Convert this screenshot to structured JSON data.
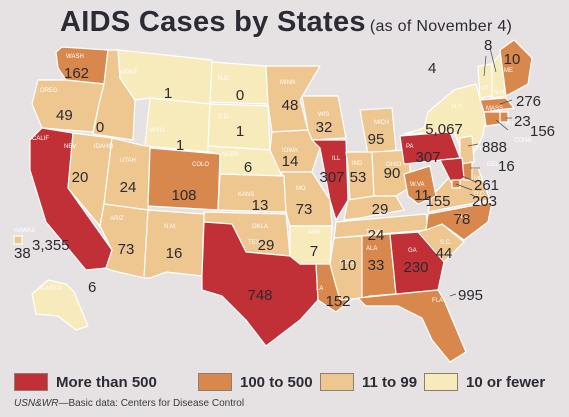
{
  "title": "AIDS Cases by States",
  "subtitle": "(as of November 4)",
  "colors": {
    "more_than_500": "#c03036",
    "c100_to_500": "#d9884d",
    "c11_to_99": "#edc690",
    "c10_or_fewer": "#f7eabb",
    "border": "#ffffff",
    "background": "#e6e2e4"
  },
  "legend": [
    {
      "label": "More than 500",
      "category": "more_than_500"
    },
    {
      "label": "100 to 500",
      "category": "c100_to_500"
    },
    {
      "label": "11 to 99",
      "category": "c11_to_99"
    },
    {
      "label": "10 or fewer",
      "category": "c10_or_fewer"
    }
  ],
  "source": {
    "brand": "USN&WR",
    "text": "—Basic data: Centers for Disease Control"
  },
  "states": [
    {
      "abbr": "WASH",
      "value": "162"
    },
    {
      "abbr": "OREG",
      "value": "49"
    },
    {
      "abbr": "CALIF",
      "value": "3,355"
    },
    {
      "abbr": "IDAHO",
      "value": "0"
    },
    {
      "abbr": "NEV",
      "value": "20"
    },
    {
      "abbr": "MONT",
      "value": "1"
    },
    {
      "abbr": "WYO",
      "value": "1"
    },
    {
      "abbr": "UTAH",
      "value": "24"
    },
    {
      "abbr": "ARIZ",
      "value": "73"
    },
    {
      "abbr": "COLO",
      "value": "108"
    },
    {
      "abbr": "N.M.",
      "value": "16"
    },
    {
      "abbr": "N.D.",
      "value": "0"
    },
    {
      "abbr": "S.D.",
      "value": "1"
    },
    {
      "abbr": "NEBR",
      "value": "6"
    },
    {
      "abbr": "KANS",
      "value": "13"
    },
    {
      "abbr": "OKLA",
      "value": "29"
    },
    {
      "abbr": "TEX",
      "value": "748"
    },
    {
      "abbr": "MINN",
      "value": "48"
    },
    {
      "abbr": "IOWA",
      "value": "14"
    },
    {
      "abbr": "MO",
      "value": "73"
    },
    {
      "abbr": "ARK",
      "value": "7"
    },
    {
      "abbr": "LA",
      "value": "152"
    },
    {
      "abbr": "WIS",
      "value": "32"
    },
    {
      "abbr": "ILL",
      "value": "307"
    },
    {
      "abbr": "MICH",
      "value": "95"
    },
    {
      "abbr": "IND",
      "value": "53"
    },
    {
      "abbr": "OHIO",
      "value": "90"
    },
    {
      "abbr": "KY",
      "value": "29"
    },
    {
      "abbr": "TENN",
      "value": "24"
    },
    {
      "abbr": "MISS",
      "value": "10"
    },
    {
      "abbr": "ALA",
      "value": "33"
    },
    {
      "abbr": "GA",
      "value": "230"
    },
    {
      "abbr": "FLA",
      "value": "995"
    },
    {
      "abbr": "S.C.",
      "value": "44"
    },
    {
      "abbr": "N.C.",
      "value": "78"
    },
    {
      "abbr": "VA",
      "value": "155"
    },
    {
      "abbr": "W.VA",
      "value": "11"
    },
    {
      "abbr": "PA",
      "value": "307"
    },
    {
      "abbr": "N.Y.",
      "value": "5,067"
    },
    {
      "abbr": "VT",
      "value": "4"
    },
    {
      "abbr": "N.H.",
      "value": "8"
    },
    {
      "abbr": "ME",
      "value": "10"
    },
    {
      "abbr": "MASS",
      "value": "276"
    },
    {
      "abbr": "R.I.",
      "value": "23"
    },
    {
      "abbr": "CONN",
      "value": "156"
    },
    {
      "abbr": "N.J.",
      "value": "888"
    },
    {
      "abbr": "DEL",
      "value": "16"
    },
    {
      "abbr": "MD",
      "value": ""
    },
    {
      "abbr": "D.C.",
      "value": "261"
    },
    {
      "abbr": "",
      "value": "203"
    },
    {
      "abbr": "HAWAII",
      "value": "38"
    },
    {
      "abbr": "ALASKA",
      "value": "6"
    }
  ]
}
